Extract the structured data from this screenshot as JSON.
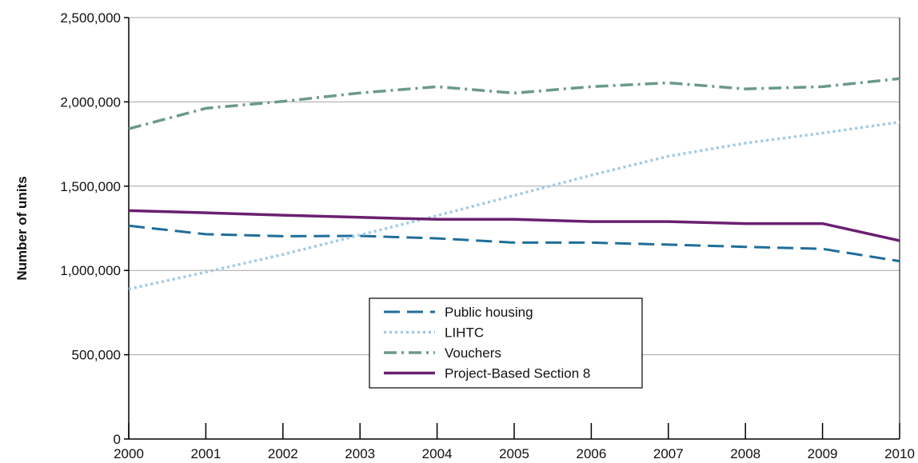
{
  "chart_data": {
    "type": "line",
    "title": "",
    "xlabel": "",
    "ylabel": "Number of units",
    "x": [
      2000,
      2001,
      2002,
      2003,
      2004,
      2005,
      2006,
      2007,
      2008,
      2009,
      2010
    ],
    "x_tick_labels": [
      "2000",
      "2001",
      "2002",
      "2003",
      "2004",
      "2005",
      "2006",
      "2007",
      "2008",
      "2009",
      "2010"
    ],
    "ylim": [
      0,
      2500000
    ],
    "y_ticks": [
      0,
      500000,
      1000000,
      1500000,
      2000000,
      2500000
    ],
    "y_tick_labels": [
      "0",
      "500,000",
      "1,000,000",
      "1,500,000",
      "2,000,000",
      "2,500,000"
    ],
    "grid": "horizontal",
    "legend_position": "center-bottom",
    "series": [
      {
        "name": "Public housing",
        "style": "dashed",
        "color": "#1f6e99",
        "values": [
          1265000,
          1215000,
          1203000,
          1205000,
          1190000,
          1165000,
          1165000,
          1153000,
          1140000,
          1128000,
          1055000
        ]
      },
      {
        "name": "LIHTC",
        "style": "dotted",
        "color": "#9fc8e6",
        "values": [
          890000,
          990000,
          1095000,
          1210000,
          1325000,
          1445000,
          1565000,
          1678000,
          1755000,
          1815000,
          1880000
        ]
      },
      {
        "name": "Vouchers",
        "style": "dash-dot",
        "color": "#6b9a87",
        "values": [
          1840000,
          1962000,
          2003000,
          2053000,
          2090000,
          2052000,
          2090000,
          2113000,
          2077000,
          2090000,
          2138000
        ]
      },
      {
        "name": "Project-Based Section 8",
        "style": "solid",
        "color": "#6a2070",
        "values": [
          1355000,
          1342000,
          1328000,
          1315000,
          1303000,
          1303000,
          1290000,
          1290000,
          1278000,
          1278000,
          1177000
        ]
      }
    ]
  }
}
